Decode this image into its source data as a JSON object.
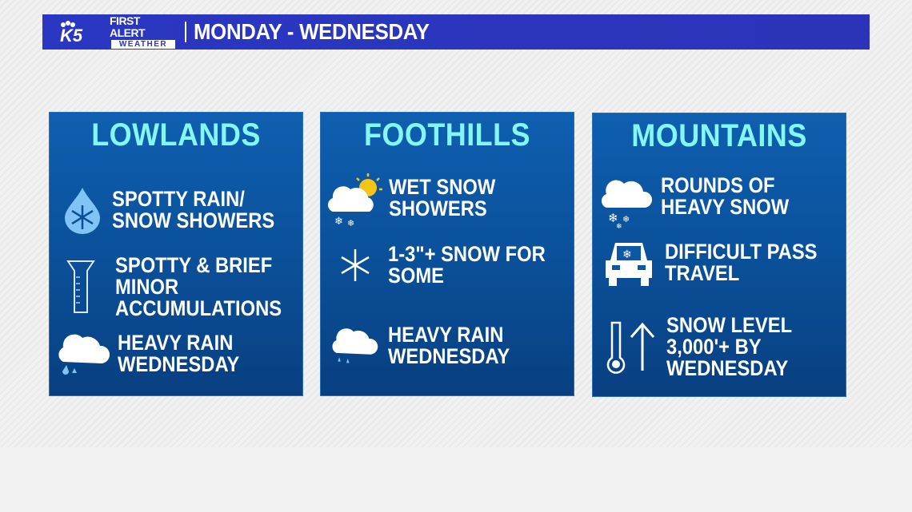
{
  "header": {
    "logo": "K5",
    "first_alert": "FIRST ALERT",
    "weather": "WEATHER",
    "title": "MONDAY - WEDNESDAY",
    "color": "#2a37c2"
  },
  "panels": [
    {
      "title": "LOWLANDS",
      "items": [
        {
          "icon": "snowflake-raindrop-icon",
          "lines": [
            "SPOTTY RAIN/",
            "SNOW SHOWERS"
          ]
        },
        {
          "icon": "rain-gauge-icon",
          "lines": [
            "SPOTTY & BRIEF",
            "MINOR",
            "ACCUMULATIONS"
          ]
        },
        {
          "icon": "cloud-rain-icon",
          "lines": [
            "HEAVY RAIN",
            "WEDNESDAY"
          ]
        }
      ]
    },
    {
      "title": "FOOTHILLS",
      "items": [
        {
          "icon": "sun-cloud-snow-icon",
          "lines": [
            "WET SNOW",
            "SHOWERS"
          ]
        },
        {
          "icon": "snowflake-icon",
          "lines": [
            "1-3\"+ SNOW FOR",
            "SOME"
          ]
        },
        {
          "icon": "cloud-rain-icon",
          "lines": [
            "HEAVY RAIN",
            "WEDNESDAY"
          ]
        }
      ]
    },
    {
      "title": "MOUNTAINS",
      "items": [
        {
          "icon": "cloud-snow-icon",
          "lines": [
            "ROUNDS OF",
            "HEAVY SNOW"
          ]
        },
        {
          "icon": "car-snow-icon",
          "lines": [
            "DIFFICULT PASS",
            "TRAVEL"
          ]
        },
        {
          "icon": "thermometer-up-arrow-icon",
          "lines": [
            "SNOW LEVEL",
            "3,000'+ BY",
            "WEDNESDAY"
          ]
        }
      ]
    }
  ],
  "colors": {
    "panel": "#0a4f98",
    "title": "#86f6f2",
    "text": "#ffffff"
  }
}
